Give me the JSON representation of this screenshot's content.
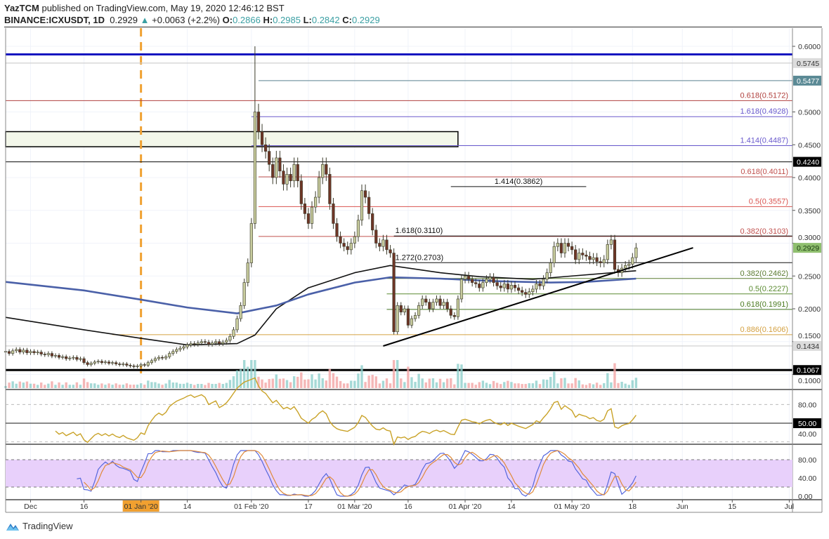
{
  "header": {
    "author": "YazTCM",
    "published": "published on TradingView.com, May 19, 2020 12:46:12 BST",
    "symbol": "BINANCE:ICXUSDT, 1D",
    "last": "0.2929",
    "change": "+0.0063 (+2.2%)",
    "o_label": "O:",
    "o": "0.2866",
    "h_label": "H:",
    "h": "0.2985",
    "l_label": "L:",
    "l": "0.2842",
    "c_label": "C:",
    "c": "0.2929"
  },
  "footer": {
    "brand": "TradingView",
    "logo_icon": "tradingview-logo-icon"
  },
  "colors": {
    "up_candle": "#c8cc9e",
    "down_candle": "#6e3526",
    "candle_border": "#3a3a2a",
    "volume_up": "#8fd0cc",
    "volume_down": "#f2a5a5",
    "rsi": "#c9a227",
    "stoch_k": "#5566dd",
    "stoch_d": "#e08a3a",
    "stoch_band": "#e8d0fb",
    "accent_teal": "#3a9fa3"
  },
  "chart_data": {
    "type": "candlestick",
    "symbol": "BINANCE:ICXUSDT",
    "interval": "1D",
    "closes": {
      "2019-11-24": [
        0.135,
        0.132,
        0.136,
        0.138,
        0.134,
        0.137,
        0.133
      ],
      "2019-12-01": [
        0.135,
        0.133,
        0.134,
        0.131,
        0.13,
        0.132,
        0.128,
        0.129,
        0.126,
        0.127,
        0.124,
        0.125,
        0.126,
        0.123,
        0.124,
        0.118,
        0.115,
        0.117,
        0.119,
        0.12,
        0.118,
        0.119,
        0.117,
        0.118,
        0.116,
        0.115,
        0.116,
        0.114,
        0.113,
        0.112,
        0.113
      ],
      "2020-01-01": [
        0.115,
        0.114,
        0.118,
        0.121,
        0.124,
        0.126,
        0.125,
        0.127,
        0.132,
        0.135,
        0.138,
        0.14,
        0.142,
        0.145,
        0.147,
        0.146,
        0.148,
        0.15,
        0.149,
        0.146,
        0.148,
        0.15,
        0.147,
        0.149,
        0.152,
        0.158,
        0.168,
        0.185,
        0.205,
        0.24,
        0.27
      ],
      "2020-02-01": [
        0.33,
        0.5,
        0.47,
        0.45,
        0.44,
        0.42,
        0.4,
        0.43,
        0.41,
        0.39,
        0.405,
        0.395,
        0.42,
        0.395,
        0.36,
        0.345,
        0.33,
        0.355,
        0.37,
        0.4,
        0.42,
        0.405,
        0.36,
        0.33,
        0.31,
        0.3,
        0.295,
        0.29,
        0.3
      ],
      "2020-03-01": [
        0.31,
        0.335,
        0.38,
        0.37,
        0.345,
        0.32,
        0.3,
        0.295,
        0.305,
        0.29,
        0.285,
        0.165,
        0.205,
        0.195,
        0.2,
        0.175,
        0.185,
        0.19,
        0.205,
        0.215,
        0.21,
        0.2,
        0.21,
        0.215,
        0.205,
        0.21,
        0.2,
        0.19,
        0.188,
        0.215,
        0.245
      ],
      "2020-04-01": [
        0.25,
        0.245,
        0.24,
        0.238,
        0.232,
        0.24,
        0.245,
        0.248,
        0.24,
        0.235,
        0.232,
        0.238,
        0.23,
        0.236,
        0.232,
        0.228,
        0.225,
        0.222,
        0.226,
        0.23,
        0.238,
        0.235,
        0.245,
        0.255,
        0.27,
        0.295,
        0.3,
        0.285,
        0.3,
        0.295
      ],
      "2020-05-01": [
        0.29,
        0.275,
        0.285,
        0.282,
        0.28,
        0.275,
        0.278,
        0.272,
        0.27,
        0.275,
        0.298,
        0.305,
        0.26,
        0.255,
        0.262,
        0.266,
        0.268,
        0.278,
        0.2929
      ]
    },
    "spike_high": {
      "date": "2020-02-02",
      "value": 0.6
    },
    "moving_averages": [
      {
        "color": "#111111",
        "points": [
          [
            "2019-11-24",
            0.187
          ],
          [
            "2019-12-16",
            0.168
          ],
          [
            "2020-01-01",
            0.155
          ],
          [
            "2020-01-14",
            0.145
          ],
          [
            "2020-01-28",
            0.147
          ],
          [
            "2020-02-02",
            0.16
          ],
          [
            "2020-02-08",
            0.2
          ],
          [
            "2020-02-17",
            0.232
          ],
          [
            "2020-03-01",
            0.255
          ],
          [
            "2020-03-11",
            0.266
          ],
          [
            "2020-03-25",
            0.255
          ],
          [
            "2020-04-05",
            0.249
          ],
          [
            "2020-04-20",
            0.245
          ],
          [
            "2020-05-01",
            0.25
          ],
          [
            "2020-05-19",
            0.258
          ]
        ]
      },
      {
        "color": "#4a60a8",
        "points": [
          [
            "2019-11-24",
            0.241
          ],
          [
            "2019-12-16",
            0.228
          ],
          [
            "2020-01-01",
            0.214
          ],
          [
            "2020-01-14",
            0.202
          ],
          [
            "2020-01-28",
            0.193
          ],
          [
            "2020-02-08",
            0.205
          ],
          [
            "2020-02-17",
            0.222
          ],
          [
            "2020-03-01",
            0.24
          ],
          [
            "2020-03-11",
            0.248
          ],
          [
            "2020-03-25",
            0.246
          ],
          [
            "2020-04-10",
            0.242
          ],
          [
            "2020-04-25",
            0.24
          ],
          [
            "2020-05-05",
            0.241
          ],
          [
            "2020-05-19",
            0.246
          ]
        ]
      }
    ],
    "horizontal_levels": [
      {
        "value": 0.5877,
        "color": "#1515c0",
        "width": "thick",
        "from": "2019-11-24"
      },
      {
        "value": 0.5745,
        "color": "#cfcfcf",
        "from": "2019-11-24"
      },
      {
        "value": 0.5477,
        "color": "#7a9aa5",
        "from": "2020-02-03"
      },
      {
        "value": 0.424,
        "color": "#222222",
        "from": "2019-11-24"
      },
      {
        "value": 0.1434,
        "color": "#cccccc",
        "from": "2019-11-24"
      },
      {
        "value": 0.1067,
        "color": "#000000",
        "width": "thick",
        "from": "2019-11-24"
      }
    ],
    "fib_levels": [
      {
        "label": "0.618(0.5172)",
        "value": 0.5172,
        "color": "#b0413e",
        "from": "2019-11-24"
      },
      {
        "label": "1.618(0.4928)",
        "value": 0.4928,
        "color": "#6a5acd",
        "from": "2020-02-01"
      },
      {
        "label": "1.414(0.4487)",
        "value": 0.4487,
        "color": "#6a5acd",
        "from": "2020-02-01"
      },
      {
        "label": "0.618(0.4011)",
        "value": 0.4011,
        "color": "#c0504d",
        "from": "2020-02-03"
      },
      {
        "label": "0.5(0.3557)",
        "value": 0.3557,
        "color": "#d9534f",
        "from": "2020-02-03"
      },
      {
        "label": "0.382(0.3103)",
        "value": 0.3103,
        "color": "#c0504d",
        "from": "2020-02-03"
      },
      {
        "label": "0.382(0.2462)",
        "value": 0.2462,
        "color": "#5a7a30",
        "from": "2020-03-10"
      },
      {
        "label": "0.5(0.2227)",
        "value": 0.2227,
        "color": "#5a8a30",
        "from": "2020-03-10"
      },
      {
        "label": "0.618(0.1991)",
        "value": 0.1991,
        "color": "#4a7a20",
        "from": "2020-03-10"
      },
      {
        "label": "0.886(0.1606)",
        "value": 0.1606,
        "color": "#d4a040",
        "from": "2019-12-24"
      }
    ],
    "extension_levels": [
      {
        "label": "1.414(0.3862)",
        "value": 0.3862,
        "from": "2020-03-28",
        "to": "2020-05-05"
      },
      {
        "label": "1.618(0.3110)",
        "value": 0.311,
        "from": "2020-03-12"
      },
      {
        "label": "1.272(0.2703)",
        "value": 0.2703,
        "from": "2020-03-12"
      }
    ],
    "zone": {
      "top": 0.47,
      "bottom": 0.447,
      "from": "2019-11-24",
      "to": "2020-03-30",
      "fill": "#f3f7ea"
    },
    "trendline": {
      "from": [
        "2020-03-09",
        0.1433
      ],
      "to": [
        "2020-06-04",
        0.293
      ]
    },
    "event_marker": {
      "date": "2020-01-01",
      "color": "#f0a030"
    },
    "price_axis": {
      "ticks": [
        "0.6000",
        "0.5000",
        "0.4500",
        "0.4000",
        "0.3500",
        "0.3000",
        "0.2500",
        "0.2000",
        "0.1500",
        "0.1000"
      ],
      "badges": [
        {
          "label": "0.5745",
          "bg": "#dcdcdc",
          "fg": "#333333"
        },
        {
          "label": "0.5477",
          "bg": "#5b8a95",
          "fg": "#ffffff"
        },
        {
          "label": "0.4240",
          "bg": "#000000",
          "fg": "#ffffff"
        },
        {
          "label": "0.2929",
          "bg": "#8fbf6e",
          "fg": "#1a3a10"
        },
        {
          "label": "0.1434",
          "bg": "#dcdcdc",
          "fg": "#333333"
        },
        {
          "label": "0.1067",
          "bg": "#000000",
          "fg": "#ffffff"
        }
      ]
    },
    "date_axis": {
      "ticks": [
        {
          "label": "Dec",
          "date": "2019-12-01"
        },
        {
          "label": "16",
          "date": "2019-12-16"
        },
        {
          "label": "01 Jan '20",
          "date": "2020-01-01",
          "highlight": true
        },
        {
          "label": "14",
          "date": "2020-01-14"
        },
        {
          "label": "01 Feb '20",
          "date": "2020-02-01"
        },
        {
          "label": "17",
          "date": "2020-02-17"
        },
        {
          "label": "01 Mar '20",
          "date": "2020-03-01"
        },
        {
          "label": "16",
          "date": "2020-03-16"
        },
        {
          "label": "01 Apr '20",
          "date": "2020-04-01"
        },
        {
          "label": "14",
          "date": "2020-04-14"
        },
        {
          "label": "01 May '20",
          "date": "2020-05-01"
        },
        {
          "label": "18",
          "date": "2020-05-18"
        },
        {
          "label": "Jun",
          "date": "2020-06-01"
        },
        {
          "label": "15",
          "date": "2020-06-15"
        },
        {
          "label": "Jul",
          "date": "2020-07-01"
        }
      ]
    },
    "rsi": {
      "period": 14,
      "levels": [
        70,
        50,
        30
      ],
      "axis_labels": [
        {
          "label": "80.00",
          "value": 70
        },
        {
          "label": "50.00",
          "value": 50,
          "badge": true
        },
        {
          "label": "40.00",
          "value": 43
        }
      ]
    },
    "stoch_rsi": {
      "k": 3,
      "d": 3,
      "band": [
        20,
        80
      ],
      "axis_labels": [
        {
          "label": "80.00",
          "value": 80
        },
        {
          "label": "40.00",
          "value": 40
        },
        {
          "label": "0.00",
          "value": 0
        }
      ]
    }
  }
}
